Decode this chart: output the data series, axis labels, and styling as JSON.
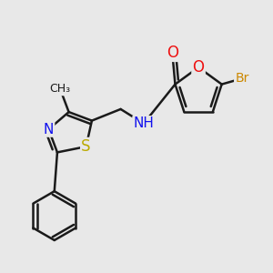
{
  "background_color": "#e8e8e8",
  "bond_color": "#1a1a1a",
  "bond_width": 1.8,
  "atom_colors": {
    "O": "#ee1111",
    "N": "#1111ee",
    "S": "#bbaa00",
    "Br": "#cc8800",
    "C": "#1a1a1a",
    "H": "#444444"
  },
  "font_size": 10,
  "fig_width": 3.0,
  "fig_height": 3.0,
  "dpi": 100
}
